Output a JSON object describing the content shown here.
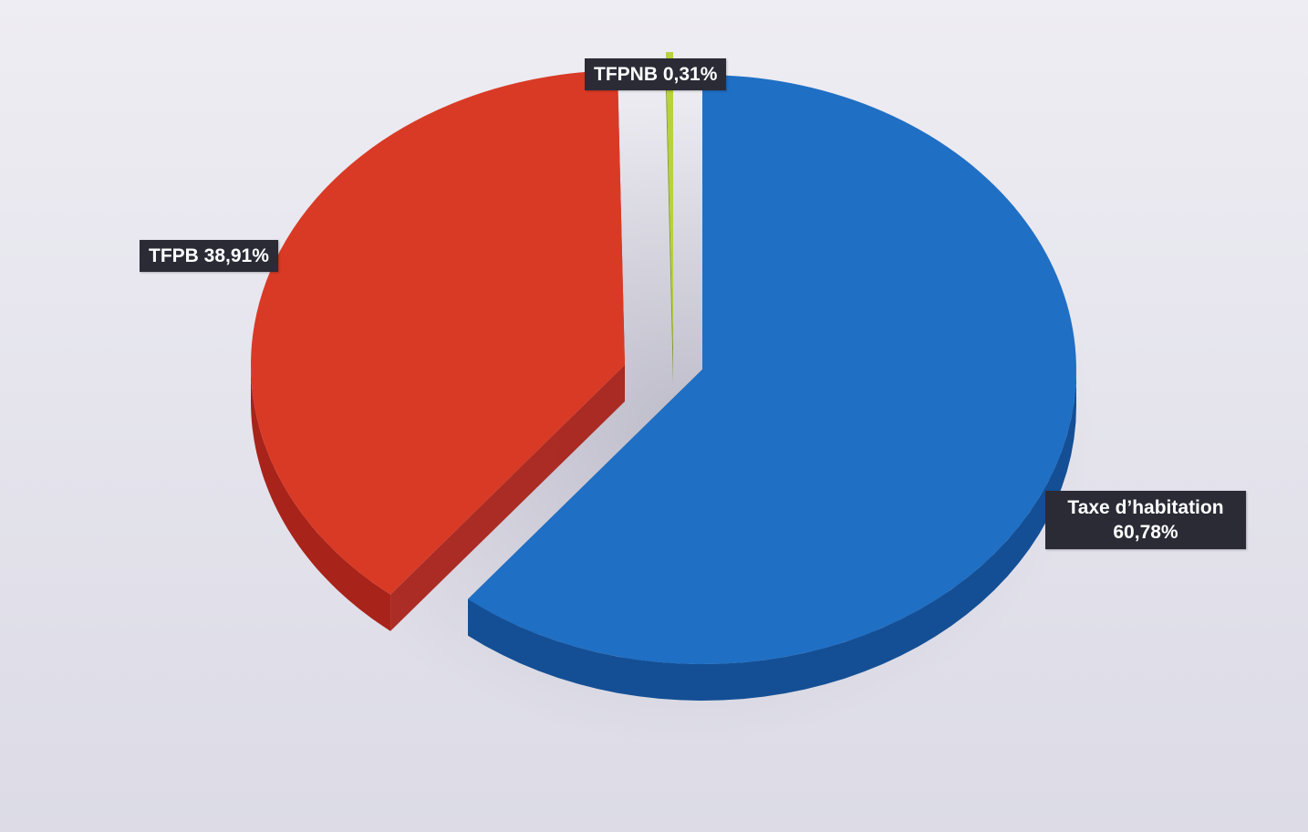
{
  "chart_data": {
    "type": "pie",
    "title": "",
    "slices": [
      {
        "label": "Taxe d’habitation",
        "value_label": "60,78%",
        "value": 60.78,
        "color": "#1f6fc4",
        "side_color": "#144f95"
      },
      {
        "label": "TFPB",
        "value_label": "38,91%",
        "value": 38.91,
        "color": "#d93a25",
        "side_color": "#a8231a"
      },
      {
        "label": "TFPNB",
        "value_label": "0,31%",
        "value": 0.31,
        "color": "#b7d23a",
        "side_color": "#7f9624"
      }
    ]
  }
}
